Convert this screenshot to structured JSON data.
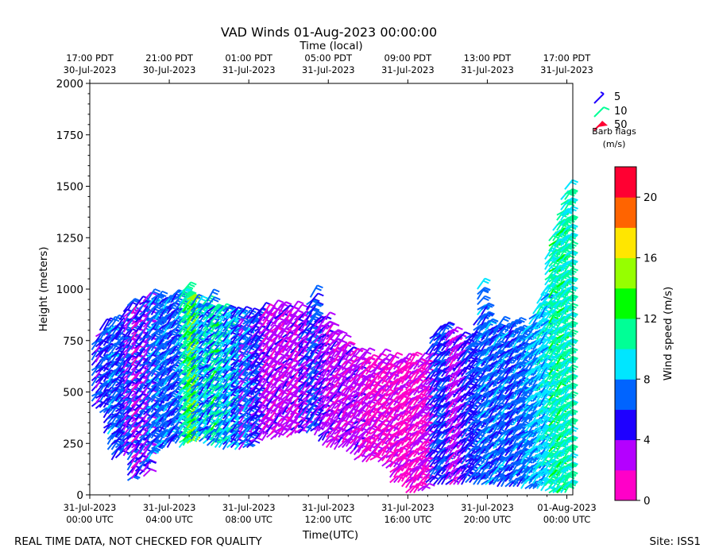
{
  "chart_data": {
    "type": "vad-wind-barbs",
    "title": "VAD Winds 01-Aug-2023 00:00:00",
    "xlabel": "Time(UTC)",
    "ylabel": "Height (meters)",
    "top_axis_label": "Time (local)",
    "ylim": [
      0,
      2000
    ],
    "y_ticks": [
      0,
      250,
      500,
      750,
      1000,
      1250,
      1500,
      1750,
      2000
    ],
    "x_range_hours": [
      0,
      24.3
    ],
    "bottom_ticks": [
      {
        "hour": 0,
        "line1": "31-Jul-2023",
        "line2": "00:00 UTC"
      },
      {
        "hour": 4,
        "line1": "31-Jul-2023",
        "line2": "04:00 UTC"
      },
      {
        "hour": 8,
        "line1": "31-Jul-2023",
        "line2": "08:00 UTC"
      },
      {
        "hour": 12,
        "line1": "31-Jul-2023",
        "line2": "12:00 UTC"
      },
      {
        "hour": 16,
        "line1": "31-Jul-2023",
        "line2": "16:00 UTC"
      },
      {
        "hour": 20,
        "line1": "31-Jul-2023",
        "line2": "20:00 UTC"
      },
      {
        "hour": 24,
        "line1": "01-Aug-2023",
        "line2": "00:00 UTC"
      }
    ],
    "top_ticks": [
      {
        "hour": 0,
        "line1": "17:00 PDT",
        "line2": "30-Jul-2023"
      },
      {
        "hour": 4,
        "line1": "21:00 PDT",
        "line2": "30-Jul-2023"
      },
      {
        "hour": 8,
        "line1": "01:00 PDT",
        "line2": "31-Jul-2023"
      },
      {
        "hour": 12,
        "line1": "05:00 PDT",
        "line2": "31-Jul-2023"
      },
      {
        "hour": 16,
        "line1": "09:00 PDT",
        "line2": "31-Jul-2023"
      },
      {
        "hour": 20,
        "line1": "13:00 PDT",
        "line2": "31-Jul-2023"
      },
      {
        "hour": 24,
        "line1": "17:00 PDT",
        "line2": "31-Jul-2023"
      }
    ],
    "colorbar": {
      "label": "Wind speed (m/s)",
      "min": 0,
      "max": 22,
      "step": 2,
      "ticks": [
        0,
        4,
        8,
        12,
        16,
        20
      ],
      "colors": [
        "#ff00c8",
        "#b400ff",
        "#1e00ff",
        "#0064ff",
        "#00e6ff",
        "#00ff96",
        "#00ff00",
        "#96ff00",
        "#ffe600",
        "#ff6400",
        "#ff0032"
      ]
    },
    "legend": {
      "entries": [
        {
          "label": "5",
          "color": "#1e00ff"
        },
        {
          "label": "10",
          "color": "#00ff96"
        },
        {
          "label": "50",
          "color": "#ff0032"
        }
      ],
      "title_line1": "Barb flags",
      "title_line2": "(m/s)"
    },
    "columns": [
      {
        "hour": 0.1,
        "bottom": 430,
        "top": 740,
        "speed": 6
      },
      {
        "hour": 0.3,
        "bottom": 420,
        "top": 780,
        "speed": 4
      },
      {
        "hour": 0.5,
        "bottom": 400,
        "top": 800,
        "speed": 6
      },
      {
        "hour": 0.7,
        "bottom": 300,
        "top": 810,
        "speed": 5
      },
      {
        "hour": 0.9,
        "bottom": 220,
        "top": 820,
        "speed": 7
      },
      {
        "hour": 1.1,
        "bottom": 170,
        "top": 820,
        "speed": 6
      },
      {
        "hour": 1.3,
        "bottom": 180,
        "top": 820,
        "speed": 5
      },
      {
        "hour": 1.5,
        "bottom": 200,
        "top": 850,
        "speed": 6
      },
      {
        "hour": 1.7,
        "bottom": 190,
        "top": 900,
        "speed": 3
      },
      {
        "hour": 1.9,
        "bottom": 70,
        "top": 920,
        "speed": 6
      },
      {
        "hour": 2.1,
        "bottom": 80,
        "top": 900,
        "speed": 2
      },
      {
        "hour": 2.3,
        "bottom": 90,
        "top": 920,
        "speed": 4
      },
      {
        "hour": 2.5,
        "bottom": 100,
        "top": 930,
        "speed": 6
      },
      {
        "hour": 2.7,
        "bottom": 90,
        "top": 940,
        "speed": 3
      },
      {
        "hour": 2.9,
        "bottom": 170,
        "top": 960,
        "speed": 7
      },
      {
        "hour": 3.1,
        "bottom": 200,
        "top": 960,
        "speed": 6
      },
      {
        "hour": 3.3,
        "bottom": 230,
        "top": 950,
        "speed": 7
      },
      {
        "hour": 3.5,
        "bottom": 230,
        "top": 940,
        "speed": 6
      },
      {
        "hour": 3.7,
        "bottom": 230,
        "top": 940,
        "speed": 7
      },
      {
        "hour": 3.9,
        "bottom": 230,
        "top": 950,
        "speed": 5
      },
      {
        "hour": 4.1,
        "bottom": 260,
        "top": 960,
        "speed": 6
      },
      {
        "hour": 4.3,
        "bottom": 250,
        "top": 960,
        "speed": 7
      },
      {
        "hour": 4.5,
        "bottom": 230,
        "top": 980,
        "speed": 10
      },
      {
        "hour": 4.7,
        "bottom": 240,
        "top": 990,
        "speed": 11
      },
      {
        "hour": 4.9,
        "bottom": 250,
        "top": 960,
        "speed": 14
      },
      {
        "hour": 5.1,
        "bottom": 270,
        "top": 930,
        "speed": 7
      },
      {
        "hour": 5.3,
        "bottom": 260,
        "top": 920,
        "speed": 9
      },
      {
        "hour": 5.5,
        "bottom": 260,
        "top": 930,
        "speed": 6
      },
      {
        "hour": 5.7,
        "bottom": 250,
        "top": 940,
        "speed": 10
      },
      {
        "hour": 5.9,
        "bottom": 240,
        "top": 940,
        "speed": 6
      },
      {
        "hour": 6.1,
        "bottom": 240,
        "top": 900,
        "speed": 11
      },
      {
        "hour": 6.3,
        "bottom": 230,
        "top": 900,
        "speed": 7
      },
      {
        "hour": 6.5,
        "bottom": 230,
        "top": 900,
        "speed": 9
      },
      {
        "hour": 6.7,
        "bottom": 220,
        "top": 900,
        "speed": 6
      },
      {
        "hour": 6.9,
        "bottom": 230,
        "top": 890,
        "speed": 9
      },
      {
        "hour": 7.1,
        "bottom": 230,
        "top": 890,
        "speed": 5
      },
      {
        "hour": 7.3,
        "bottom": 220,
        "top": 890,
        "speed": 7
      },
      {
        "hour": 7.5,
        "bottom": 220,
        "top": 880,
        "speed": 3
      },
      {
        "hour": 7.7,
        "bottom": 230,
        "top": 870,
        "speed": 7
      },
      {
        "hour": 7.9,
        "bottom": 230,
        "top": 870,
        "speed": 6
      },
      {
        "hour": 8.1,
        "bottom": 260,
        "top": 880,
        "speed": 4
      },
      {
        "hour": 8.3,
        "bottom": 270,
        "top": 880,
        "speed": 5
      },
      {
        "hour": 8.5,
        "bottom": 280,
        "top": 880,
        "speed": 3
      },
      {
        "hour": 8.7,
        "bottom": 270,
        "top": 880,
        "speed": 2
      },
      {
        "hour": 8.9,
        "bottom": 280,
        "top": 890,
        "speed": 3
      },
      {
        "hour": 9.1,
        "bottom": 270,
        "top": 900,
        "speed": 2
      },
      {
        "hour": 9.3,
        "bottom": 280,
        "top": 900,
        "speed": 3
      },
      {
        "hour": 9.5,
        "bottom": 280,
        "top": 910,
        "speed": 2
      },
      {
        "hour": 9.7,
        "bottom": 290,
        "top": 900,
        "speed": 3
      },
      {
        "hour": 9.9,
        "bottom": 280,
        "top": 890,
        "speed": 2
      },
      {
        "hour": 10.1,
        "bottom": 290,
        "top": 900,
        "speed": 3
      },
      {
        "hour": 10.3,
        "bottom": 300,
        "top": 890,
        "speed": 2
      },
      {
        "hour": 10.5,
        "bottom": 300,
        "top": 870,
        "speed": 5
      },
      {
        "hour": 10.7,
        "bottom": 310,
        "top": 860,
        "speed": 3
      },
      {
        "hour": 10.9,
        "bottom": 300,
        "top": 930,
        "speed": 6
      },
      {
        "hour": 11.1,
        "bottom": 310,
        "top": 960,
        "speed": 6
      },
      {
        "hour": 11.3,
        "bottom": 290,
        "top": 860,
        "speed": 3
      },
      {
        "hour": 11.5,
        "bottom": 260,
        "top": 850,
        "speed": 4
      },
      {
        "hour": 11.7,
        "bottom": 240,
        "top": 840,
        "speed": 3
      },
      {
        "hour": 11.9,
        "bottom": 230,
        "top": 820,
        "speed": 2
      },
      {
        "hour": 12.1,
        "bottom": 230,
        "top": 780,
        "speed": 3
      },
      {
        "hour": 12.3,
        "bottom": 220,
        "top": 760,
        "speed": 2
      },
      {
        "hour": 12.5,
        "bottom": 230,
        "top": 740,
        "speed": 3
      },
      {
        "hour": 12.7,
        "bottom": 230,
        "top": 720,
        "speed": 2
      },
      {
        "hour": 12.9,
        "bottom": 210,
        "top": 700,
        "speed": 3
      },
      {
        "hour": 13.1,
        "bottom": 200,
        "top": 690,
        "speed": 2
      },
      {
        "hour": 13.3,
        "bottom": 170,
        "top": 680,
        "speed": 3
      },
      {
        "hour": 13.5,
        "bottom": 180,
        "top": 670,
        "speed": 2
      },
      {
        "hour": 13.7,
        "bottom": 160,
        "top": 660,
        "speed": 2
      },
      {
        "hour": 13.9,
        "bottom": 160,
        "top": 650,
        "speed": 1
      },
      {
        "hour": 14.1,
        "bottom": 170,
        "top": 640,
        "speed": 2
      },
      {
        "hour": 14.3,
        "bottom": 180,
        "top": 650,
        "speed": 1
      },
      {
        "hour": 14.5,
        "bottom": 160,
        "top": 660,
        "speed": 2
      },
      {
        "hour": 14.7,
        "bottom": 140,
        "top": 650,
        "speed": 1
      },
      {
        "hour": 14.9,
        "bottom": 130,
        "top": 640,
        "speed": 2
      },
      {
        "hour": 15.1,
        "bottom": 60,
        "top": 640,
        "speed": 1
      },
      {
        "hour": 15.3,
        "bottom": 60,
        "top": 640,
        "speed": 2
      },
      {
        "hour": 15.5,
        "bottom": 60,
        "top": 650,
        "speed": 1
      },
      {
        "hour": 15.7,
        "bottom": 40,
        "top": 640,
        "speed": 1
      },
      {
        "hour": 15.9,
        "bottom": 10,
        "top": 650,
        "speed": 1
      },
      {
        "hour": 16.1,
        "bottom": 10,
        "top": 640,
        "speed": 2
      },
      {
        "hour": 16.3,
        "bottom": 10,
        "top": 640,
        "speed": 1
      },
      {
        "hour": 16.5,
        "bottom": 20,
        "top": 650,
        "speed": 2
      },
      {
        "hour": 16.7,
        "bottom": 20,
        "top": 630,
        "speed": 1
      },
      {
        "hour": 16.9,
        "bottom": 60,
        "top": 700,
        "speed": 3
      },
      {
        "hour": 17.1,
        "bottom": 60,
        "top": 760,
        "speed": 6
      },
      {
        "hour": 17.3,
        "bottom": 50,
        "top": 780,
        "speed": 5
      },
      {
        "hour": 17.5,
        "bottom": 50,
        "top": 800,
        "speed": 6
      },
      {
        "hour": 17.7,
        "bottom": 50,
        "top": 800,
        "speed": 5
      },
      {
        "hour": 17.9,
        "bottom": 50,
        "top": 790,
        "speed": 3
      },
      {
        "hour": 18.1,
        "bottom": 50,
        "top": 780,
        "speed": 2
      },
      {
        "hour": 18.3,
        "bottom": 50,
        "top": 760,
        "speed": 3
      },
      {
        "hour": 18.5,
        "bottom": 50,
        "top": 760,
        "speed": 4
      },
      {
        "hour": 18.7,
        "bottom": 50,
        "top": 740,
        "speed": 5
      },
      {
        "hour": 18.9,
        "bottom": 60,
        "top": 760,
        "speed": 6
      },
      {
        "hour": 19.1,
        "bottom": 60,
        "top": 770,
        "speed": 5
      },
      {
        "hour": 19.3,
        "bottom": 50,
        "top": 830,
        "speed": 6
      },
      {
        "hour": 19.5,
        "bottom": 50,
        "top": 1000,
        "speed": 7
      },
      {
        "hour": 19.7,
        "bottom": 50,
        "top": 900,
        "speed": 6
      },
      {
        "hour": 19.9,
        "bottom": 50,
        "top": 830,
        "speed": 7
      },
      {
        "hour": 20.1,
        "bottom": 50,
        "top": 810,
        "speed": 5
      },
      {
        "hour": 20.3,
        "bottom": 50,
        "top": 820,
        "speed": 7
      },
      {
        "hour": 20.5,
        "bottom": 40,
        "top": 830,
        "speed": 6
      },
      {
        "hour": 20.7,
        "bottom": 40,
        "top": 800,
        "speed": 7
      },
      {
        "hour": 20.9,
        "bottom": 40,
        "top": 810,
        "speed": 5
      },
      {
        "hour": 21.1,
        "bottom": 40,
        "top": 820,
        "speed": 6
      },
      {
        "hour": 21.3,
        "bottom": 40,
        "top": 830,
        "speed": 7
      },
      {
        "hour": 21.5,
        "bottom": 40,
        "top": 780,
        "speed": 6
      },
      {
        "hour": 21.7,
        "bottom": 30,
        "top": 800,
        "speed": 7
      },
      {
        "hour": 21.9,
        "bottom": 30,
        "top": 820,
        "speed": 8
      },
      {
        "hour": 22.1,
        "bottom": 30,
        "top": 860,
        "speed": 7
      },
      {
        "hour": 22.3,
        "bottom": 30,
        "top": 900,
        "speed": 8
      },
      {
        "hour": 22.5,
        "bottom": 30,
        "top": 940,
        "speed": 9
      },
      {
        "hour": 22.7,
        "bottom": 20,
        "top": 980,
        "speed": 8
      },
      {
        "hour": 22.9,
        "bottom": 20,
        "top": 1150,
        "speed": 9
      },
      {
        "hour": 23.1,
        "bottom": 10,
        "top": 1250,
        "speed": 11
      },
      {
        "hour": 23.3,
        "bottom": 10,
        "top": 1300,
        "speed": 9
      },
      {
        "hour": 23.5,
        "bottom": 10,
        "top": 1380,
        "speed": 11
      },
      {
        "hour": 23.7,
        "bottom": 10,
        "top": 1450,
        "speed": 9
      },
      {
        "hour": 23.9,
        "bottom": 10,
        "top": 1490,
        "speed": 10
      }
    ]
  },
  "footer": {
    "left": "REAL TIME DATA, NOT CHECKED FOR QUALITY",
    "right": "Site: ISS1"
  }
}
